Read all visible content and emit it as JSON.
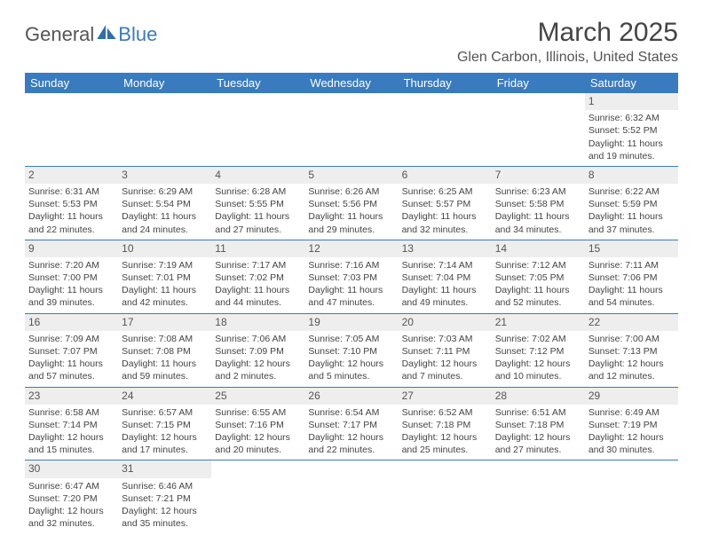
{
  "logo": {
    "text1": "General",
    "text2": "Blue",
    "sail_color": "#2f6fae"
  },
  "title": "March 2025",
  "location": "Glen Carbon, Illinois, United States",
  "header_bg": "#3a7bbf",
  "shade_bg": "#eeeeee",
  "days_of_week": [
    "Sunday",
    "Monday",
    "Tuesday",
    "Wednesday",
    "Thursday",
    "Friday",
    "Saturday"
  ],
  "weeks": [
    [
      null,
      null,
      null,
      null,
      null,
      null,
      {
        "n": "1",
        "sr": "Sunrise: 6:32 AM",
        "ss": "Sunset: 5:52 PM",
        "d1": "Daylight: 11 hours",
        "d2": "and 19 minutes."
      }
    ],
    [
      {
        "n": "2",
        "sr": "Sunrise: 6:31 AM",
        "ss": "Sunset: 5:53 PM",
        "d1": "Daylight: 11 hours",
        "d2": "and 22 minutes."
      },
      {
        "n": "3",
        "sr": "Sunrise: 6:29 AM",
        "ss": "Sunset: 5:54 PM",
        "d1": "Daylight: 11 hours",
        "d2": "and 24 minutes."
      },
      {
        "n": "4",
        "sr": "Sunrise: 6:28 AM",
        "ss": "Sunset: 5:55 PM",
        "d1": "Daylight: 11 hours",
        "d2": "and 27 minutes."
      },
      {
        "n": "5",
        "sr": "Sunrise: 6:26 AM",
        "ss": "Sunset: 5:56 PM",
        "d1": "Daylight: 11 hours",
        "d2": "and 29 minutes."
      },
      {
        "n": "6",
        "sr": "Sunrise: 6:25 AM",
        "ss": "Sunset: 5:57 PM",
        "d1": "Daylight: 11 hours",
        "d2": "and 32 minutes."
      },
      {
        "n": "7",
        "sr": "Sunrise: 6:23 AM",
        "ss": "Sunset: 5:58 PM",
        "d1": "Daylight: 11 hours",
        "d2": "and 34 minutes."
      },
      {
        "n": "8",
        "sr": "Sunrise: 6:22 AM",
        "ss": "Sunset: 5:59 PM",
        "d1": "Daylight: 11 hours",
        "d2": "and 37 minutes."
      }
    ],
    [
      {
        "n": "9",
        "sr": "Sunrise: 7:20 AM",
        "ss": "Sunset: 7:00 PM",
        "d1": "Daylight: 11 hours",
        "d2": "and 39 minutes."
      },
      {
        "n": "10",
        "sr": "Sunrise: 7:19 AM",
        "ss": "Sunset: 7:01 PM",
        "d1": "Daylight: 11 hours",
        "d2": "and 42 minutes."
      },
      {
        "n": "11",
        "sr": "Sunrise: 7:17 AM",
        "ss": "Sunset: 7:02 PM",
        "d1": "Daylight: 11 hours",
        "d2": "and 44 minutes."
      },
      {
        "n": "12",
        "sr": "Sunrise: 7:16 AM",
        "ss": "Sunset: 7:03 PM",
        "d1": "Daylight: 11 hours",
        "d2": "and 47 minutes."
      },
      {
        "n": "13",
        "sr": "Sunrise: 7:14 AM",
        "ss": "Sunset: 7:04 PM",
        "d1": "Daylight: 11 hours",
        "d2": "and 49 minutes."
      },
      {
        "n": "14",
        "sr": "Sunrise: 7:12 AM",
        "ss": "Sunset: 7:05 PM",
        "d1": "Daylight: 11 hours",
        "d2": "and 52 minutes."
      },
      {
        "n": "15",
        "sr": "Sunrise: 7:11 AM",
        "ss": "Sunset: 7:06 PM",
        "d1": "Daylight: 11 hours",
        "d2": "and 54 minutes."
      }
    ],
    [
      {
        "n": "16",
        "sr": "Sunrise: 7:09 AM",
        "ss": "Sunset: 7:07 PM",
        "d1": "Daylight: 11 hours",
        "d2": "and 57 minutes."
      },
      {
        "n": "17",
        "sr": "Sunrise: 7:08 AM",
        "ss": "Sunset: 7:08 PM",
        "d1": "Daylight: 11 hours",
        "d2": "and 59 minutes."
      },
      {
        "n": "18",
        "sr": "Sunrise: 7:06 AM",
        "ss": "Sunset: 7:09 PM",
        "d1": "Daylight: 12 hours",
        "d2": "and 2 minutes."
      },
      {
        "n": "19",
        "sr": "Sunrise: 7:05 AM",
        "ss": "Sunset: 7:10 PM",
        "d1": "Daylight: 12 hours",
        "d2": "and 5 minutes."
      },
      {
        "n": "20",
        "sr": "Sunrise: 7:03 AM",
        "ss": "Sunset: 7:11 PM",
        "d1": "Daylight: 12 hours",
        "d2": "and 7 minutes."
      },
      {
        "n": "21",
        "sr": "Sunrise: 7:02 AM",
        "ss": "Sunset: 7:12 PM",
        "d1": "Daylight: 12 hours",
        "d2": "and 10 minutes."
      },
      {
        "n": "22",
        "sr": "Sunrise: 7:00 AM",
        "ss": "Sunset: 7:13 PM",
        "d1": "Daylight: 12 hours",
        "d2": "and 12 minutes."
      }
    ],
    [
      {
        "n": "23",
        "sr": "Sunrise: 6:58 AM",
        "ss": "Sunset: 7:14 PM",
        "d1": "Daylight: 12 hours",
        "d2": "and 15 minutes."
      },
      {
        "n": "24",
        "sr": "Sunrise: 6:57 AM",
        "ss": "Sunset: 7:15 PM",
        "d1": "Daylight: 12 hours",
        "d2": "and 17 minutes."
      },
      {
        "n": "25",
        "sr": "Sunrise: 6:55 AM",
        "ss": "Sunset: 7:16 PM",
        "d1": "Daylight: 12 hours",
        "d2": "and 20 minutes."
      },
      {
        "n": "26",
        "sr": "Sunrise: 6:54 AM",
        "ss": "Sunset: 7:17 PM",
        "d1": "Daylight: 12 hours",
        "d2": "and 22 minutes."
      },
      {
        "n": "27",
        "sr": "Sunrise: 6:52 AM",
        "ss": "Sunset: 7:18 PM",
        "d1": "Daylight: 12 hours",
        "d2": "and 25 minutes."
      },
      {
        "n": "28",
        "sr": "Sunrise: 6:51 AM",
        "ss": "Sunset: 7:18 PM",
        "d1": "Daylight: 12 hours",
        "d2": "and 27 minutes."
      },
      {
        "n": "29",
        "sr": "Sunrise: 6:49 AM",
        "ss": "Sunset: 7:19 PM",
        "d1": "Daylight: 12 hours",
        "d2": "and 30 minutes."
      }
    ],
    [
      {
        "n": "30",
        "sr": "Sunrise: 6:47 AM",
        "ss": "Sunset: 7:20 PM",
        "d1": "Daylight: 12 hours",
        "d2": "and 32 minutes."
      },
      {
        "n": "31",
        "sr": "Sunrise: 6:46 AM",
        "ss": "Sunset: 7:21 PM",
        "d1": "Daylight: 12 hours",
        "d2": "and 35 minutes."
      },
      null,
      null,
      null,
      null,
      null
    ]
  ]
}
